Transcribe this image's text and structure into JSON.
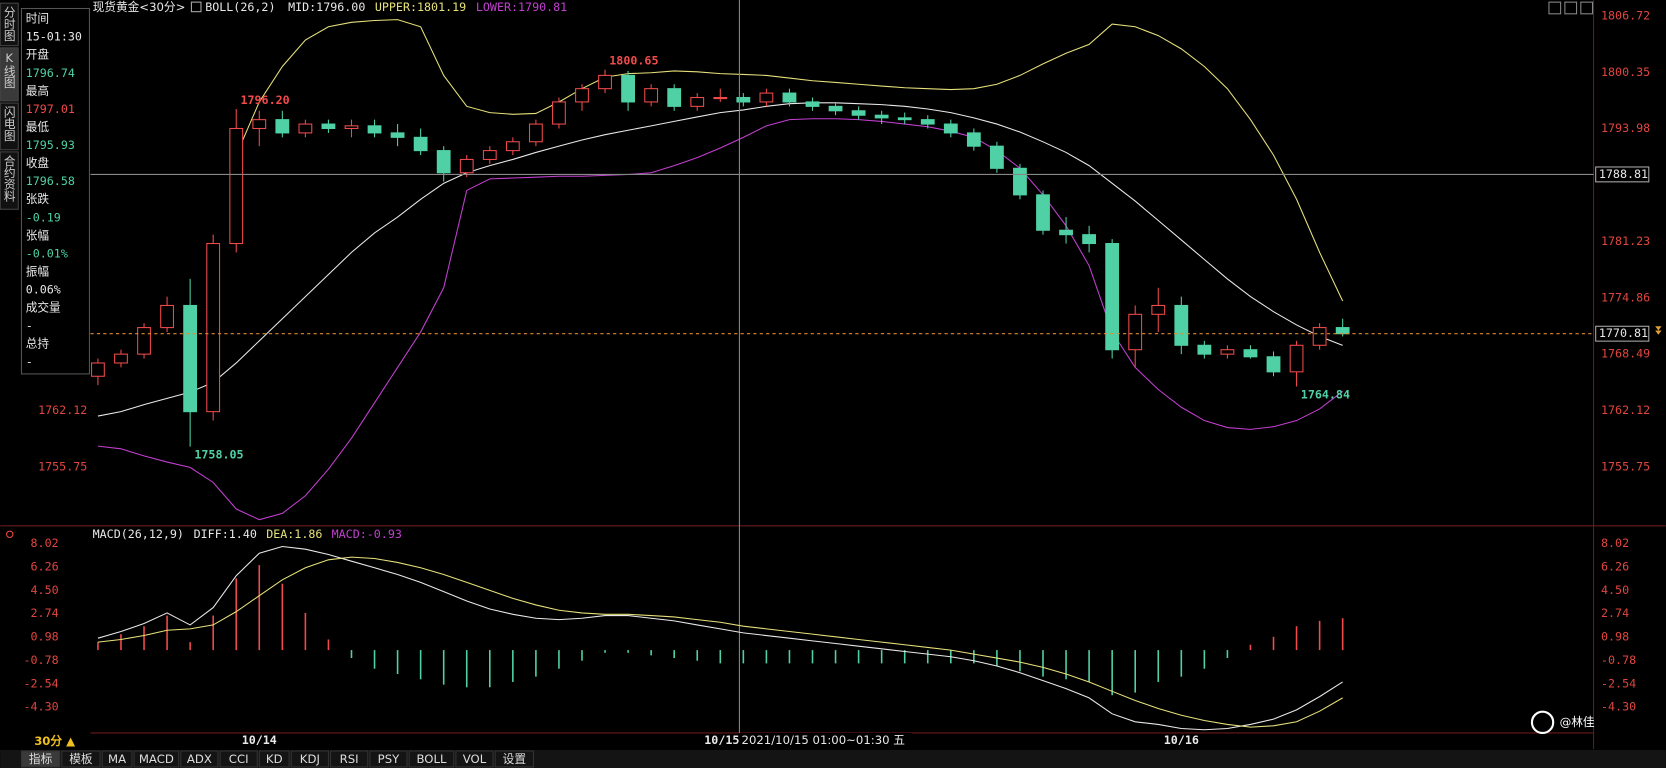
{
  "sidebar": [
    "分时图",
    "K线图",
    "闪电图",
    "合约资料"
  ],
  "quote": [
    {
      "label": "时间",
      "value": "15-01:30",
      "color": "#e8e8e8"
    },
    {
      "label": "开盘",
      "value": "1796.74",
      "color": "#4fd1a5"
    },
    {
      "label": "最高",
      "value": "1797.01",
      "color": "#f04a4a"
    },
    {
      "label": "最低",
      "value": "1795.93",
      "color": "#4fd1a5"
    },
    {
      "label": "收盘",
      "value": "1796.58",
      "color": "#4fd1a5"
    },
    {
      "label": "张跌",
      "value": "-0.19",
      "color": "#4fd1a5"
    },
    {
      "label": "张幅",
      "value": "-0.01%",
      "color": "#4fd1a5"
    },
    {
      "label": "振幅",
      "value": "0.06%",
      "color": "#e8e8e8"
    },
    {
      "label": "成交量",
      "value": "-",
      "color": "#e8e8e8"
    },
    {
      "label": "总持",
      "value": "-",
      "color": "#e8e8e8"
    }
  ],
  "period": "30分 ▲",
  "tabs": [
    "指标",
    "模板",
    "MA",
    "MACD",
    "ADX",
    "CCI",
    "KD",
    "KDJ",
    "RSI",
    "PSY",
    "BOLL",
    "VOL",
    "设置"
  ],
  "watermark": "@林佳",
  "chart_data": [
    {
      "type": "candlestick",
      "title": "现货黄金<30分>",
      "indicator": "BOLL(26,2)",
      "up_color": "#f04a4a",
      "down_color": "#4fd1a5",
      "ylim": [
        1749.34,
        1808.52
      ],
      "yticks": [
        1806.72,
        1800.35,
        1793.98,
        1781.23,
        1774.86,
        1768.49,
        1762.12,
        1755.75
      ],
      "crosshair_price": 1788.81,
      "last_price": 1770.81,
      "annotations": [
        {
          "value": 1796.2,
          "label": "1796.20"
        },
        1800.65,
        1758.05,
        1764.84
      ],
      "ohlc": [
        [
          1766,
          1768,
          1765,
          1767.5
        ],
        [
          1767.5,
          1769,
          1767,
          1768.5
        ],
        [
          1768.5,
          1772,
          1768,
          1771.5
        ],
        [
          1771.5,
          1775,
          1771,
          1774
        ],
        [
          1774,
          1777,
          1758.05,
          1762
        ],
        [
          1762,
          1782,
          1761,
          1781
        ],
        [
          1781,
          1796.2,
          1780,
          1794
        ],
        [
          1794,
          1796,
          1792,
          1795
        ],
        [
          1795,
          1796,
          1793,
          1793.5
        ],
        [
          1793.5,
          1795,
          1793,
          1794.5
        ],
        [
          1794.5,
          1795,
          1793.5,
          1794
        ],
        [
          1794,
          1795,
          1793,
          1794.3
        ],
        [
          1794.3,
          1795,
          1793,
          1793.5
        ],
        [
          1793.5,
          1794.5,
          1792,
          1793
        ],
        [
          1793,
          1794,
          1791,
          1791.5
        ],
        [
          1791.5,
          1792,
          1788,
          1789
        ],
        [
          1789,
          1791,
          1788.5,
          1790.5
        ],
        [
          1790.5,
          1792,
          1790,
          1791.5
        ],
        [
          1791.5,
          1793,
          1791,
          1792.5
        ],
        [
          1792.5,
          1795,
          1792,
          1794.5
        ],
        [
          1794.5,
          1797.5,
          1794,
          1797
        ],
        [
          1797,
          1799,
          1796,
          1798.5
        ],
        [
          1798.5,
          1800.65,
          1798,
          1800
        ],
        [
          1800,
          1800.5,
          1796,
          1797
        ],
        [
          1797,
          1799,
          1796.5,
          1798.5
        ],
        [
          1798.5,
          1799,
          1796,
          1796.5
        ],
        [
          1796.5,
          1798,
          1796,
          1797.5
        ],
        [
          1797.5,
          1798.5,
          1797,
          1797.5
        ],
        [
          1797.5,
          1798,
          1796.5,
          1797
        ],
        [
          1797,
          1798.5,
          1796.5,
          1798
        ],
        [
          1798,
          1798.5,
          1796.5,
          1797
        ],
        [
          1797,
          1797.5,
          1796,
          1796.5
        ],
        [
          1796.5,
          1797,
          1795.5,
          1796
        ],
        [
          1796,
          1796.5,
          1795,
          1795.5
        ],
        [
          1795.5,
          1796,
          1794.5,
          1795.2
        ],
        [
          1795.2,
          1795.8,
          1794.5,
          1795
        ],
        [
          1795,
          1795.5,
          1794,
          1794.5
        ],
        [
          1794.5,
          1795,
          1793,
          1793.5
        ],
        [
          1793.5,
          1794,
          1791.5,
          1792
        ],
        [
          1792,
          1792.5,
          1789,
          1789.5
        ],
        [
          1789.5,
          1790,
          1786,
          1786.5
        ],
        [
          1786.5,
          1787,
          1782,
          1782.5
        ],
        [
          1782.5,
          1784,
          1781,
          1782
        ],
        [
          1782,
          1783,
          1780,
          1781
        ],
        [
          1781,
          1781.5,
          1768,
          1769
        ],
        [
          1769,
          1774,
          1767,
          1773
        ],
        [
          1773,
          1776,
          1771,
          1774
        ],
        [
          1774,
          1775,
          1768.5,
          1769.5
        ],
        [
          1769.5,
          1770,
          1768,
          1768.5
        ],
        [
          1768.5,
          1769.5,
          1768,
          1769
        ],
        [
          1769,
          1769.5,
          1768,
          1768.2
        ],
        [
          1768.2,
          1768.8,
          1766,
          1766.5
        ],
        [
          1766.5,
          1770,
          1764.84,
          1769.5
        ],
        [
          1769.5,
          1772,
          1769,
          1771.5
        ],
        [
          1771.5,
          1772.5,
          1770.5,
          1770.81
        ]
      ],
      "series": [
        {
          "name": "MID:1796.00",
          "color": "#e8e8e8",
          "values": [
            1761.5,
            1762,
            1762.8,
            1763.5,
            1764.2,
            1765.3,
            1767.5,
            1770,
            1772.5,
            1775,
            1777.5,
            1780,
            1782.2,
            1784,
            1786,
            1787.8,
            1789,
            1789.8,
            1790.5,
            1791.3,
            1792,
            1792.7,
            1793.3,
            1793.8,
            1794.3,
            1794.8,
            1795.3,
            1795.8,
            1796.1,
            1796.5,
            1796.8,
            1796.9,
            1796.9,
            1796.8,
            1796.7,
            1796.5,
            1796.2,
            1795.8,
            1795.2,
            1794.5,
            1793.6,
            1792.5,
            1791.3,
            1789.8,
            1787.8,
            1785.8,
            1783.6,
            1781.4,
            1779.2,
            1777,
            1775,
            1773.3,
            1771.8,
            1770.5,
            1769.5
          ]
        },
        {
          "name": "UPPER:1801.19",
          "color": "#e6e07a",
          "values": [
            null,
            null,
            null,
            null,
            null,
            null,
            1791,
            1797,
            1801,
            1804,
            1805.5,
            1806,
            1806.2,
            1806.3,
            1805.5,
            1800,
            1796.5,
            1795.8,
            1795.6,
            1795.7,
            1797,
            1798.5,
            1799.8,
            1800.2,
            1800.3,
            1800.5,
            1800.4,
            1800.2,
            1800.1,
            1800,
            1799.7,
            1799.4,
            1799.2,
            1799,
            1798.8,
            1798.6,
            1798.5,
            1798.4,
            1798.5,
            1799,
            1800,
            1801.3,
            1802.5,
            1803.5,
            1805.8,
            1805.5,
            1804.5,
            1803,
            1801,
            1798.5,
            1795,
            1791,
            1786,
            1780,
            1774.5
          ]
        },
        {
          "name": "LOWER:1790.81",
          "color": "#c23fd0",
          "values": [
            1758.1,
            1757.8,
            1757,
            1756.3,
            1755.7,
            1754,
            1751,
            1749.8,
            1750.5,
            1752.5,
            1755.5,
            1759,
            1763,
            1767,
            1771,
            1776,
            1787,
            1788.3,
            1788.4,
            1788.5,
            1788.6,
            1788.6,
            1788.7,
            1788.8,
            1789,
            1789.8,
            1790.7,
            1791.8,
            1793,
            1794.3,
            1795,
            1795.1,
            1795.1,
            1795,
            1794.8,
            1794.5,
            1794.2,
            1793.7,
            1793,
            1791.5,
            1789.5,
            1786.5,
            1783,
            1778.5,
            1771,
            1767,
            1764.5,
            1762.5,
            1761,
            1760.2,
            1760,
            1760.3,
            1761,
            1762.3,
            1764.3
          ]
        }
      ]
    },
    {
      "type": "macd",
      "title": "MACD(26,12,9)",
      "ylim": [
        -6.24,
        9.12
      ],
      "yticks": [
        8.02,
        6.26,
        {
          "value": 4.5,
          "label": "4.50"
        },
        2.74,
        0.98,
        -0.78,
        -2.54,
        {
          "value": -4.3,
          "label": "-4.30"
        }
      ],
      "categories": [
        null,
        null,
        null,
        null,
        null,
        null,
        null,
        "10/14",
        null,
        null,
        null,
        null,
        null,
        null,
        null,
        null,
        null,
        null,
        null,
        null,
        null,
        null,
        null,
        null,
        null,
        null,
        null,
        "10/15",
        null,
        null,
        null,
        null,
        null,
        null,
        null,
        null,
        null,
        null,
        null,
        null,
        null,
        null,
        null,
        null,
        null,
        null,
        null,
        "10/16",
        null,
        null,
        null,
        null,
        null,
        null,
        null
      ],
      "crosshair_label": "2021/10/15 01:00~01:30 五",
      "series": [
        {
          "name": "DIFF:1.40",
          "color": "#e8e8e8",
          "values": [
            0.9,
            1.4,
            2.0,
            2.8,
            1.9,
            3.2,
            5.6,
            7.3,
            7.8,
            7.6,
            7.2,
            6.7,
            6.2,
            5.7,
            5.1,
            4.4,
            3.7,
            3.1,
            2.7,
            2.4,
            2.3,
            2.4,
            2.6,
            2.6,
            2.4,
            2.2,
            1.9,
            1.6,
            1.3,
            1.1,
            0.9,
            0.7,
            0.5,
            0.3,
            0.1,
            -0.1,
            -0.3,
            -0.5,
            -0.8,
            -1.2,
            -1.7,
            -2.3,
            -2.9,
            -3.6,
            -4.8,
            -5.4,
            -5.6,
            -5.9,
            -6.0,
            -5.9,
            -5.6,
            -5.2,
            -4.5,
            -3.5,
            -2.4
          ]
        },
        {
          "name": "DEA:1.86",
          "color": "#e6e07a",
          "values": [
            0.6,
            0.8,
            1.1,
            1.5,
            1.6,
            1.9,
            2.9,
            4.1,
            5.3,
            6.2,
            6.8,
            7.0,
            6.9,
            6.6,
            6.2,
            5.7,
            5.1,
            4.5,
            3.9,
            3.4,
            3.0,
            2.8,
            2.7,
            2.7,
            2.6,
            2.5,
            2.3,
            2.1,
            1.8,
            1.6,
            1.4,
            1.2,
            1.0,
            0.8,
            0.6,
            0.4,
            0.2,
            0.0,
            -0.3,
            -0.6,
            -0.9,
            -1.3,
            -1.8,
            -2.4,
            -3.1,
            -3.8,
            -4.4,
            -4.9,
            -5.3,
            -5.6,
            -5.8,
            -5.7,
            -5.4,
            -4.6,
            -3.6
          ]
        }
      ],
      "histogram": {
        "name": "MACD:-0.93",
        "color": "#c23fd0",
        "up_color": "#f04a4a",
        "down_color": "#4fd1a5",
        "values": [
          0.6,
          1.2,
          1.8,
          2.6,
          0.6,
          2.6,
          5.4,
          6.4,
          5.0,
          2.8,
          0.8,
          -0.6,
          -1.4,
          -1.8,
          -2.2,
          -2.6,
          -2.8,
          -2.8,
          -2.4,
          -2.0,
          -1.4,
          -0.8,
          -0.2,
          -0.2,
          -0.4,
          -0.6,
          -0.8,
          -1.0,
          -1.0,
          -1.0,
          -1.0,
          -1.0,
          -1.0,
          -1.0,
          -1.0,
          -1.0,
          -1.0,
          -1.0,
          -1.0,
          -1.2,
          -1.6,
          -2.0,
          -2.2,
          -2.4,
          -3.4,
          -3.2,
          -2.4,
          -2.0,
          -1.4,
          -0.6,
          0.4,
          1.0,
          1.8,
          2.2,
          2.4
        ]
      }
    }
  ]
}
